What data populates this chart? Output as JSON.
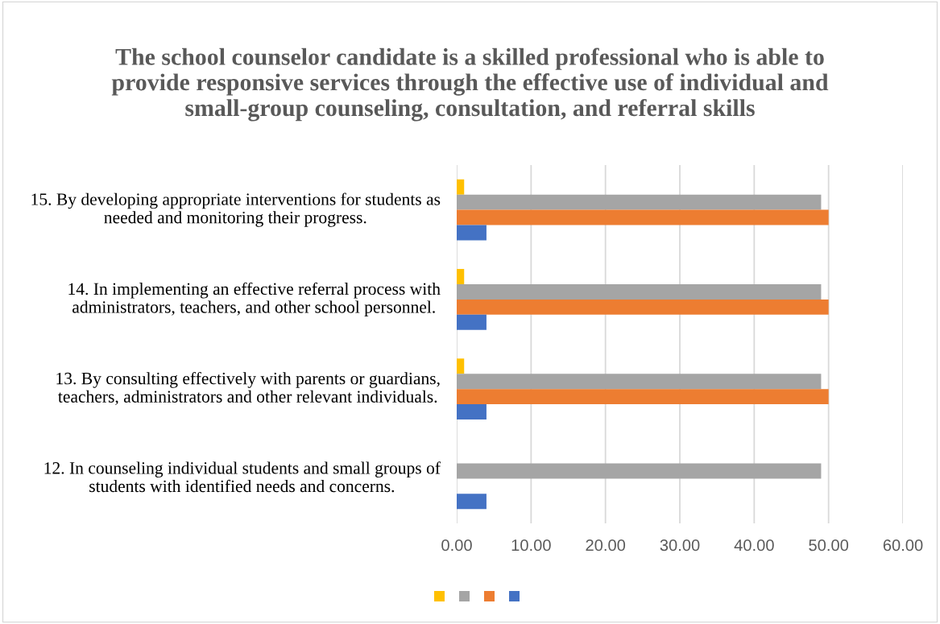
{
  "chart_data": {
    "type": "bar",
    "orientation": "horizontal",
    "title": "The school counselor candidate is a skilled professional who is able to provide responsive services through the effective use of individual and small-group counseling, consultation, and referral skills",
    "categories": [
      "15. By developing appropriate interventions for students as needed and monitoring their progress.",
      "14. In implementing an effective referral process with administrators, teachers, and other school personnel.",
      "13. By consulting effectively with parents or guardians, teachers, administrators and other relevant individuals.",
      "12. In counseling individual students and small groups of students with identified needs and concerns."
    ],
    "series": [
      {
        "color": "#ffc000",
        "values": [
          1.0,
          1.0,
          1.0,
          null
        ]
      },
      {
        "color": "#a5a5a5",
        "values": [
          49.0,
          49.0,
          49.0,
          49.0
        ]
      },
      {
        "color": "#ed7d31",
        "values": [
          50.0,
          50.0,
          50.0,
          null
        ]
      },
      {
        "color": "#4472c4",
        "values": [
          4.0,
          4.0,
          4.0,
          4.0
        ]
      }
    ],
    "xlim": [
      0,
      60
    ],
    "xticks": [
      {
        "value": 0,
        "label": "0.00"
      },
      {
        "value": 10,
        "label": "10.00"
      },
      {
        "value": 20,
        "label": "20.00"
      },
      {
        "value": 30,
        "label": "30.00"
      },
      {
        "value": 40,
        "label": "40.00"
      },
      {
        "value": 50,
        "label": "50.00"
      },
      {
        "value": 60,
        "label": "60.00"
      }
    ],
    "grid": "x"
  }
}
